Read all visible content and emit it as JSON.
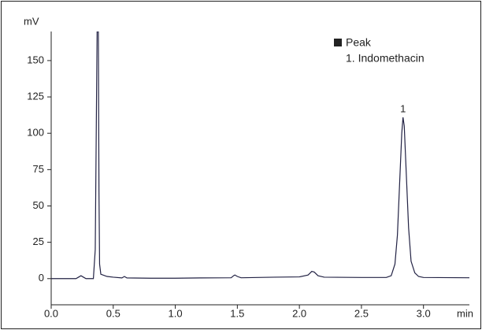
{
  "chart_data": {
    "type": "line",
    "y_label": "mV",
    "x_label": "min",
    "legend_title": "Peak",
    "peak_labels": [
      {
        "label": "1",
        "name": "1. Indomethacin",
        "x": 2.835,
        "y": 111
      }
    ],
    "x": [
      0.0,
      0.2,
      0.22,
      0.24,
      0.26,
      0.28,
      0.34,
      0.355,
      0.365,
      0.37,
      0.38,
      0.385,
      0.39,
      0.4,
      0.45,
      0.5,
      0.57,
      0.59,
      0.61,
      0.8,
      1.0,
      1.2,
      1.45,
      1.47,
      1.48,
      1.5,
      1.53,
      1.8,
      2.0,
      2.07,
      2.1,
      2.12,
      2.15,
      2.2,
      2.5,
      2.7,
      2.74,
      2.77,
      2.79,
      2.81,
      2.825,
      2.835,
      2.845,
      2.86,
      2.88,
      2.9,
      2.93,
      2.96,
      3.0,
      3.37
    ],
    "series": [
      {
        "color": "#222244",
        "values": [
          0,
          0,
          1,
          2,
          1,
          0,
          0,
          20,
          120,
          170,
          170,
          60,
          10,
          3,
          1.5,
          1,
          0.5,
          1.5,
          0.5,
          0.3,
          0.3,
          0.5,
          0.6,
          2,
          2.5,
          1.5,
          0.6,
          1,
          1.2,
          2.5,
          5,
          4.5,
          2,
          1,
          0.8,
          0.8,
          2,
          10,
          30,
          70,
          100,
          111,
          105,
          75,
          35,
          12,
          4,
          1.5,
          0.8,
          0.6
        ]
      }
    ],
    "xlim": [
      0,
      3.37
    ],
    "ylim": [
      -18,
      170
    ],
    "xticks": [
      {
        "value": 0,
        "label": "0.0"
      },
      0.5,
      {
        "value": 1,
        "label": "1.0"
      },
      1.5,
      {
        "value": 2,
        "label": "2.0"
      },
      2.5,
      {
        "value": 3,
        "label": "3.0"
      }
    ],
    "yticks": [
      0,
      25,
      50,
      75,
      100,
      125,
      150
    ]
  }
}
